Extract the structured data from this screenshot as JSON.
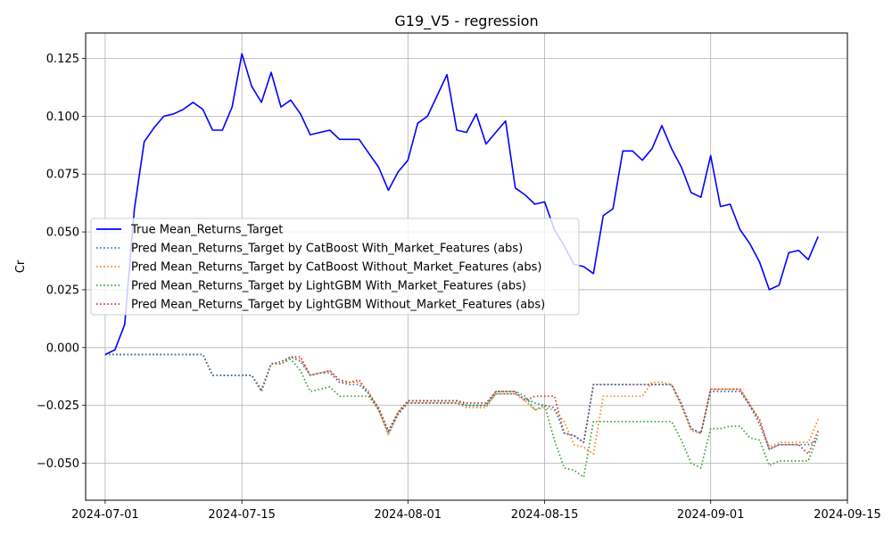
{
  "chart_data": {
    "type": "line",
    "title": "G19_V5 - regression",
    "xlabel": "",
    "ylabel": "Cr",
    "x_ticks": [
      "2024-07-01",
      "2024-07-15",
      "2024-08-01",
      "2024-08-15",
      "2024-09-01",
      "2024-09-15"
    ],
    "y_ticks": [
      "0.125",
      "0.100",
      "0.075",
      "0.050",
      "0.025",
      "0.000",
      "−0.025",
      "−0.050"
    ],
    "xlim": [
      "2024-06-29",
      "2024-09-15"
    ],
    "ylim": [
      -0.066,
      0.136
    ],
    "grid": true,
    "legend_position": "center-left",
    "x": [
      "2024-07-01",
      "2024-07-02",
      "2024-07-03",
      "2024-07-04",
      "2024-07-05",
      "2024-07-06",
      "2024-07-07",
      "2024-07-08",
      "2024-07-09",
      "2024-07-10",
      "2024-07-11",
      "2024-07-12",
      "2024-07-13",
      "2024-07-14",
      "2024-07-15",
      "2024-07-16",
      "2024-07-17",
      "2024-07-18",
      "2024-07-19",
      "2024-07-20",
      "2024-07-21",
      "2024-07-22",
      "2024-07-23",
      "2024-07-24",
      "2024-07-25",
      "2024-07-26",
      "2024-07-27",
      "2024-07-28",
      "2024-07-29",
      "2024-07-30",
      "2024-07-31",
      "2024-08-01",
      "2024-08-02",
      "2024-08-03",
      "2024-08-04",
      "2024-08-05",
      "2024-08-06",
      "2024-08-07",
      "2024-08-08",
      "2024-08-09",
      "2024-08-10",
      "2024-08-11",
      "2024-08-12",
      "2024-08-13",
      "2024-08-14",
      "2024-08-15",
      "2024-08-16",
      "2024-08-17",
      "2024-08-18",
      "2024-08-19",
      "2024-08-20",
      "2024-08-21",
      "2024-08-22",
      "2024-08-23",
      "2024-08-24",
      "2024-08-25",
      "2024-08-26",
      "2024-08-27",
      "2024-08-28",
      "2024-08-29",
      "2024-08-30",
      "2024-08-31",
      "2024-09-01",
      "2024-09-02",
      "2024-09-03",
      "2024-09-04",
      "2024-09-05",
      "2024-09-06",
      "2024-09-07",
      "2024-09-08",
      "2024-09-09",
      "2024-09-10",
      "2024-09-11",
      "2024-09-12"
    ],
    "series": [
      {
        "name": "True Mean_Returns_Target",
        "color": "#0000ff",
        "style": "solid",
        "values": [
          -0.003,
          -0.001,
          0.01,
          0.06,
          0.089,
          0.095,
          0.1,
          0.101,
          0.103,
          0.106,
          0.103,
          0.094,
          0.094,
          0.104,
          0.127,
          0.113,
          0.106,
          0.119,
          0.104,
          0.107,
          0.101,
          0.092,
          0.093,
          0.094,
          0.09,
          0.09,
          0.09,
          0.084,
          0.078,
          0.068,
          0.076,
          0.081,
          0.097,
          0.1,
          0.109,
          0.118,
          0.094,
          0.093,
          0.101,
          0.088,
          0.093,
          0.098,
          0.069,
          0.066,
          0.062,
          0.063,
          0.051,
          0.044,
          0.036,
          0.035,
          0.032,
          0.057,
          0.06,
          0.085,
          0.085,
          0.081,
          0.086,
          0.096,
          0.086,
          0.078,
          0.067,
          0.065,
          0.083,
          0.061,
          0.062,
          0.051,
          0.045,
          0.037,
          0.025,
          0.027,
          0.041,
          0.042,
          0.038,
          0.048
        ]
      },
      {
        "name": "Pred Mean_Returns_Target by CatBoost With_Market_Features (abs)",
        "color": "#1f77b4",
        "style": "dotted",
        "values": [
          -0.003,
          -0.003,
          -0.003,
          -0.003,
          -0.003,
          -0.003,
          -0.003,
          -0.003,
          -0.003,
          -0.003,
          -0.003,
          -0.012,
          -0.012,
          -0.012,
          -0.012,
          -0.012,
          -0.019,
          -0.007,
          -0.006,
          -0.004,
          -0.006,
          -0.012,
          -0.011,
          -0.011,
          -0.015,
          -0.016,
          -0.016,
          -0.02,
          -0.027,
          -0.037,
          -0.029,
          -0.024,
          -0.024,
          -0.024,
          -0.024,
          -0.024,
          -0.024,
          -0.025,
          -0.025,
          -0.025,
          -0.02,
          -0.02,
          -0.02,
          -0.022,
          -0.024,
          -0.025,
          -0.026,
          -0.037,
          -0.038,
          -0.041,
          -0.016,
          -0.016,
          -0.016,
          -0.016,
          -0.016,
          -0.016,
          -0.016,
          -0.016,
          -0.016,
          -0.024,
          -0.035,
          -0.037,
          -0.019,
          -0.019,
          -0.019,
          -0.019,
          -0.025,
          -0.033,
          -0.044,
          -0.042,
          -0.042,
          -0.042,
          -0.042,
          -0.04
        ]
      },
      {
        "name": "Pred Mean_Returns_Target by CatBoost Without_Market_Features (abs)",
        "color": "#ff7f0e",
        "style": "dotted",
        "values": [
          -0.003,
          -0.003,
          -0.003,
          -0.003,
          -0.003,
          -0.003,
          -0.003,
          -0.003,
          -0.003,
          -0.003,
          -0.003,
          -0.012,
          -0.012,
          -0.012,
          -0.012,
          -0.012,
          -0.018,
          -0.007,
          -0.007,
          -0.004,
          -0.005,
          -0.012,
          -0.011,
          -0.01,
          -0.015,
          -0.015,
          -0.015,
          -0.019,
          -0.027,
          -0.038,
          -0.028,
          -0.024,
          -0.024,
          -0.024,
          -0.024,
          -0.024,
          -0.024,
          -0.026,
          -0.026,
          -0.026,
          -0.02,
          -0.02,
          -0.02,
          -0.023,
          -0.027,
          -0.026,
          -0.027,
          -0.032,
          -0.042,
          -0.043,
          -0.046,
          -0.021,
          -0.021,
          -0.021,
          -0.021,
          -0.021,
          -0.015,
          -0.015,
          -0.016,
          -0.025,
          -0.036,
          -0.037,
          -0.018,
          -0.018,
          -0.018,
          -0.018,
          -0.024,
          -0.032,
          -0.043,
          -0.041,
          -0.041,
          -0.041,
          -0.041,
          -0.031
        ]
      },
      {
        "name": "Pred Mean_Returns_Target by LightGBM With_Market_Features (abs)",
        "color": "#2ca02c",
        "style": "dotted",
        "values": [
          -0.003,
          -0.003,
          -0.003,
          -0.003,
          -0.003,
          -0.003,
          -0.003,
          -0.003,
          -0.003,
          -0.003,
          -0.003,
          -0.012,
          -0.012,
          -0.012,
          -0.012,
          -0.012,
          -0.018,
          -0.007,
          -0.007,
          -0.005,
          -0.01,
          -0.019,
          -0.018,
          -0.017,
          -0.021,
          -0.021,
          -0.021,
          -0.021,
          -0.027,
          -0.036,
          -0.028,
          -0.023,
          -0.023,
          -0.023,
          -0.023,
          -0.023,
          -0.023,
          -0.025,
          -0.025,
          -0.025,
          -0.019,
          -0.019,
          -0.019,
          -0.021,
          -0.027,
          -0.025,
          -0.04,
          -0.052,
          -0.053,
          -0.056,
          -0.032,
          -0.032,
          -0.032,
          -0.032,
          -0.032,
          -0.032,
          -0.032,
          -0.032,
          -0.032,
          -0.04,
          -0.05,
          -0.052,
          -0.035,
          -0.035,
          -0.034,
          -0.034,
          -0.039,
          -0.04,
          -0.051,
          -0.049,
          -0.049,
          -0.049,
          -0.049,
          -0.038
        ]
      },
      {
        "name": "Pred Mean_Returns_Target by LightGBM Without_Market_Features (abs)",
        "color": "#d62728",
        "style": "dotted",
        "values": [
          -0.003,
          -0.003,
          -0.003,
          -0.003,
          -0.003,
          -0.003,
          -0.003,
          -0.003,
          -0.003,
          -0.003,
          -0.003,
          -0.012,
          -0.012,
          -0.012,
          -0.012,
          -0.012,
          -0.019,
          -0.007,
          -0.007,
          -0.004,
          -0.004,
          -0.012,
          -0.011,
          -0.01,
          -0.014,
          -0.015,
          -0.014,
          -0.02,
          -0.026,
          -0.036,
          -0.028,
          -0.023,
          -0.023,
          -0.023,
          -0.023,
          -0.023,
          -0.023,
          -0.024,
          -0.024,
          -0.024,
          -0.019,
          -0.019,
          -0.019,
          -0.023,
          -0.021,
          -0.021,
          -0.021,
          -0.037,
          -0.038,
          -0.041,
          -0.016,
          -0.016,
          -0.016,
          -0.016,
          -0.016,
          -0.016,
          -0.016,
          -0.016,
          -0.016,
          -0.025,
          -0.035,
          -0.037,
          -0.018,
          -0.018,
          -0.018,
          -0.018,
          -0.025,
          -0.031,
          -0.044,
          -0.042,
          -0.042,
          -0.042,
          -0.046,
          -0.036
        ]
      }
    ]
  }
}
